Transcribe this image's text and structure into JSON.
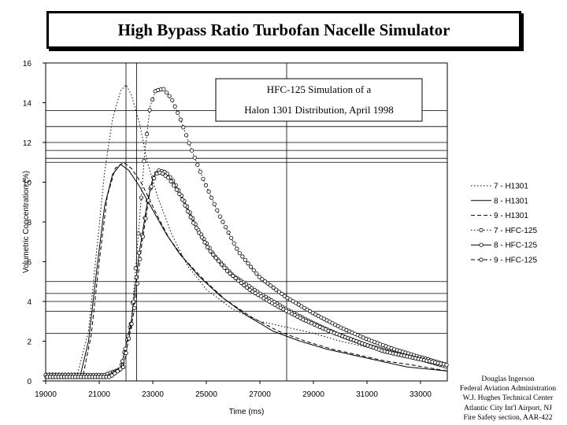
{
  "title": "High Bypass Ratio Turbofan Nacelle Simulator",
  "colors": {
    "line": "#000000",
    "background": "#ffffff"
  },
  "credit_lines": [
    "Douglas Ingerson",
    "Federal Aviation Administration",
    "W.J. Hughes Technical Center",
    "Atlantic City Int'l Airport, NJ",
    "Fire Safety section, AAR-422"
  ],
  "chart_data": {
    "type": "line",
    "annotation": [
      "HFC-125 Simulation of a",
      "Halon 1301 Distribution, April 1998"
    ],
    "xlabel": "Time (ms)",
    "ylabel": "Volumetric Concentration (%)",
    "xlim": [
      19000,
      34000
    ],
    "ylim": [
      0,
      16
    ],
    "xticks": [
      19000,
      21000,
      23000,
      25000,
      27000,
      29000,
      31000,
      33000
    ],
    "yticks": [
      0,
      2,
      4,
      6,
      8,
      10,
      12,
      14,
      16
    ],
    "grid": "irregular reference lines",
    "legend_position": "right",
    "series": [
      {
        "name": "7 - H1301",
        "style": "dotted",
        "points": [
          [
            19000,
            0.4
          ],
          [
            20200,
            0.4
          ],
          [
            20600,
            2.5
          ],
          [
            20900,
            6.5
          ],
          [
            21200,
            10.5
          ],
          [
            21500,
            13.2
          ],
          [
            21800,
            14.6
          ],
          [
            22000,
            14.9
          ],
          [
            22200,
            14.4
          ],
          [
            22500,
            13.0
          ],
          [
            22800,
            11.0
          ],
          [
            23200,
            9.2
          ],
          [
            23700,
            7.4
          ],
          [
            24300,
            5.8
          ],
          [
            25000,
            4.6
          ],
          [
            26000,
            3.6
          ],
          [
            27000,
            3.0
          ],
          [
            28000,
            2.7
          ],
          [
            29000,
            2.4
          ],
          [
            30000,
            2.0
          ],
          [
            31000,
            1.7
          ],
          [
            32000,
            1.4
          ],
          [
            33000,
            1.1
          ],
          [
            34000,
            0.8
          ]
        ]
      },
      {
        "name": "8 - H1301",
        "style": "solid",
        "points": [
          [
            19000,
            0.3
          ],
          [
            20300,
            0.3
          ],
          [
            20600,
            2.0
          ],
          [
            20900,
            5.5
          ],
          [
            21200,
            8.8
          ],
          [
            21500,
            10.4
          ],
          [
            21800,
            10.9
          ],
          [
            22100,
            10.6
          ],
          [
            22500,
            9.8
          ],
          [
            23000,
            8.6
          ],
          [
            23500,
            7.4
          ],
          [
            24000,
            6.4
          ],
          [
            24700,
            5.3
          ],
          [
            25500,
            4.3
          ],
          [
            26500,
            3.3
          ],
          [
            27500,
            2.5
          ],
          [
            28500,
            2.0
          ],
          [
            29500,
            1.6
          ],
          [
            30500,
            1.3
          ],
          [
            31500,
            1.0
          ],
          [
            32500,
            0.7
          ],
          [
            34000,
            0.5
          ]
        ]
      },
      {
        "name": "9 - H1301",
        "style": "dashed",
        "points": [
          [
            19000,
            0.3
          ],
          [
            20400,
            0.3
          ],
          [
            20700,
            2.3
          ],
          [
            21000,
            6.0
          ],
          [
            21300,
            9.3
          ],
          [
            21600,
            10.7
          ],
          [
            21900,
            11.0
          ],
          [
            22200,
            10.7
          ],
          [
            22600,
            9.9
          ],
          [
            23100,
            8.5
          ],
          [
            23600,
            7.2
          ],
          [
            24200,
            6.1
          ],
          [
            24900,
            5.1
          ],
          [
            25700,
            4.1
          ],
          [
            26700,
            3.2
          ],
          [
            27700,
            2.5
          ],
          [
            28700,
            2.0
          ],
          [
            29700,
            1.6
          ],
          [
            30700,
            1.3
          ],
          [
            31700,
            1.0
          ],
          [
            32700,
            0.8
          ],
          [
            34000,
            0.5
          ]
        ]
      },
      {
        "name": "7 - HFC-125",
        "style": "dotted-open-circle",
        "points": [
          [
            19000,
            0.3
          ],
          [
            21200,
            0.3
          ],
          [
            21800,
            0.6
          ],
          [
            22200,
            3.0
          ],
          [
            22500,
            8.0
          ],
          [
            22700,
            11.5
          ],
          [
            22900,
            13.8
          ],
          [
            23100,
            14.6
          ],
          [
            23400,
            14.7
          ],
          [
            23700,
            14.2
          ],
          [
            24000,
            13.3
          ],
          [
            24400,
            11.8
          ],
          [
            24900,
            10.1
          ],
          [
            25500,
            8.3
          ],
          [
            26200,
            6.5
          ],
          [
            27000,
            5.2
          ],
          [
            28000,
            4.2
          ],
          [
            29000,
            3.4
          ],
          [
            30000,
            2.7
          ],
          [
            31000,
            2.1
          ],
          [
            32000,
            1.6
          ],
          [
            33000,
            1.2
          ],
          [
            34000,
            0.8
          ]
        ]
      },
      {
        "name": "8 - HFC-125",
        "style": "solid-open-circle",
        "points": [
          [
            19000,
            0.2
          ],
          [
            21300,
            0.2
          ],
          [
            21800,
            0.6
          ],
          [
            22200,
            3.0
          ],
          [
            22500,
            6.5
          ],
          [
            22800,
            9.0
          ],
          [
            23000,
            10.2
          ],
          [
            23200,
            10.6
          ],
          [
            23500,
            10.5
          ],
          [
            23800,
            10.0
          ],
          [
            24200,
            9.0
          ],
          [
            24700,
            7.6
          ],
          [
            25300,
            6.3
          ],
          [
            26000,
            5.3
          ],
          [
            27000,
            4.4
          ],
          [
            28000,
            3.6
          ],
          [
            29000,
            2.9
          ],
          [
            30000,
            2.3
          ],
          [
            31000,
            1.8
          ],
          [
            32000,
            1.4
          ],
          [
            33000,
            1.1
          ],
          [
            34000,
            0.7
          ]
        ]
      },
      {
        "name": "9 - HFC-125",
        "style": "dashed-open-circle",
        "points": [
          [
            19000,
            0.2
          ],
          [
            21400,
            0.2
          ],
          [
            21900,
            0.7
          ],
          [
            22300,
            3.5
          ],
          [
            22600,
            7.0
          ],
          [
            22900,
            9.6
          ],
          [
            23100,
            10.4
          ],
          [
            23300,
            10.5
          ],
          [
            23600,
            10.2
          ],
          [
            24000,
            9.4
          ],
          [
            24500,
            8.0
          ],
          [
            25100,
            6.6
          ],
          [
            25800,
            5.5
          ],
          [
            26600,
            4.6
          ],
          [
            27600,
            3.8
          ],
          [
            28600,
            3.1
          ],
          [
            29600,
            2.5
          ],
          [
            30600,
            2.0
          ],
          [
            31600,
            1.5
          ],
          [
            32600,
            1.2
          ],
          [
            34000,
            0.8
          ]
        ]
      }
    ]
  }
}
